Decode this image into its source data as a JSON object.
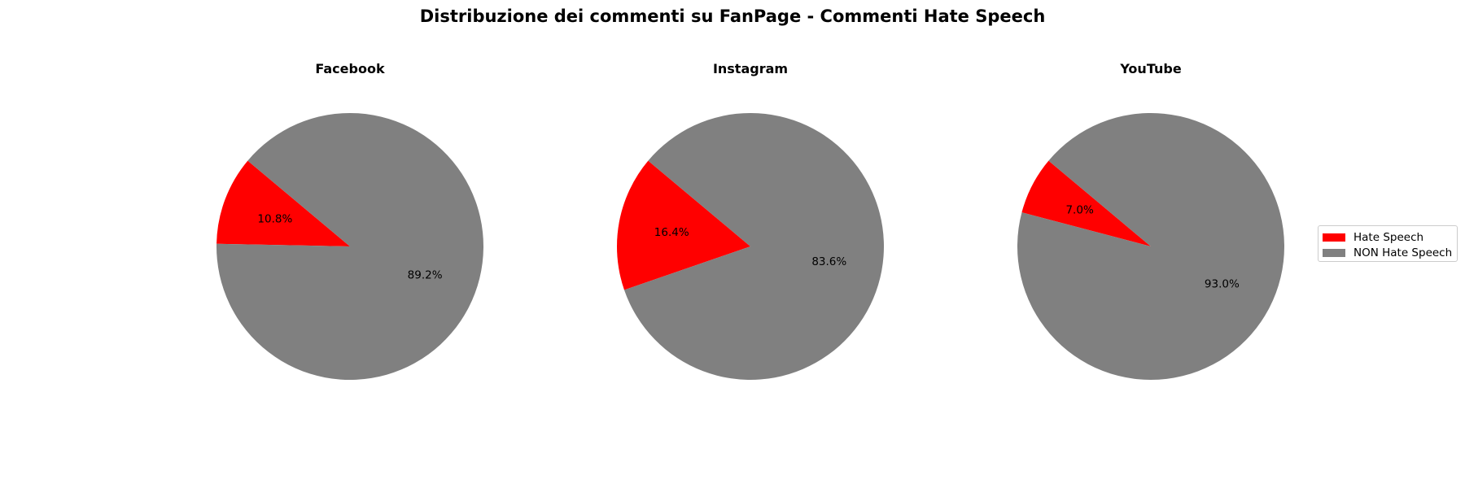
{
  "colors": {
    "hate": "#ff0000",
    "non_hate": "#808080"
  },
  "chart_data": {
    "type": "pie",
    "title": "Distribuzione dei commenti su FanPage - Commenti Hate Speech",
    "legend": {
      "placement": "right",
      "entries": [
        "Hate Speech",
        "NON Hate Speech"
      ]
    },
    "pies": [
      {
        "title": "Facebook",
        "labels": [
          "Hate Speech",
          "NON Hate Speech"
        ],
        "values": [
          10.8,
          89.2
        ],
        "display": [
          "10.8%",
          "89.2%"
        ]
      },
      {
        "title": "Instagram",
        "labels": [
          "Hate Speech",
          "NON Hate Speech"
        ],
        "values": [
          16.4,
          83.6
        ],
        "display": [
          "16.4%",
          "83.6%"
        ]
      },
      {
        "title": "YouTube",
        "labels": [
          "Hate Speech",
          "NON Hate Speech"
        ],
        "values": [
          7.0,
          93.0
        ],
        "display": [
          "7.0%",
          "93.0%"
        ]
      }
    ]
  }
}
